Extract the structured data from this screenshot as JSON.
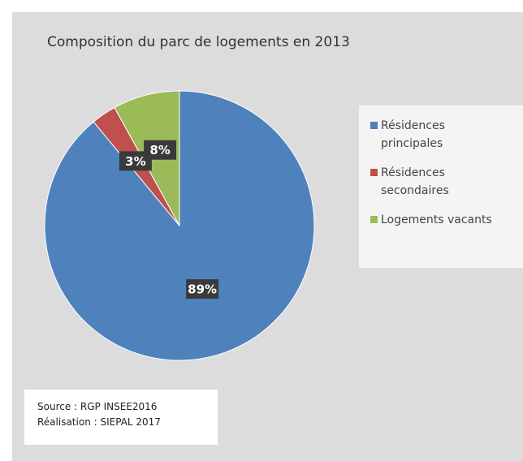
{
  "chart_data": {
    "type": "pie",
    "title": "Composition du parc de logements en 2013",
    "categories": [
      "Résidences principales",
      "Résidences secondaires",
      "Logements vacants"
    ],
    "values": [
      89,
      3,
      8
    ],
    "value_labels": [
      "89%",
      "3%",
      "8%"
    ],
    "colors": [
      "#4f81bd",
      "#c0504d",
      "#9bbb59"
    ],
    "notes": [
      "Source : RGP INSEE2016",
      "Réalisation : SIEPAL 2017"
    ]
  }
}
